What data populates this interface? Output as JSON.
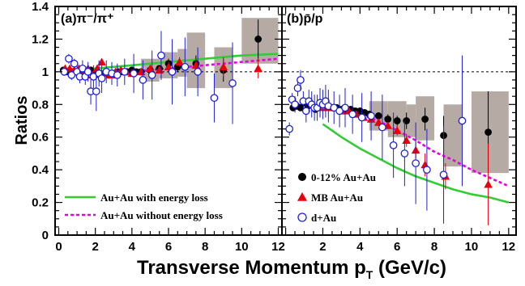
{
  "chart_data": {
    "type": "scatter",
    "ylabel": "Ratios",
    "xlabel_main": "Transverse Momentum p",
    "xlabel_sub": "T",
    "xlabel_unit": " (GeV/c)",
    "ylim": [
      0,
      1.4
    ],
    "y_ticks": [
      "0",
      "0.2",
      "0.4",
      "0.6",
      "0.8",
      "1",
      "1.2",
      "1.4"
    ],
    "x_ticks": [
      "0",
      "2",
      "4",
      "6",
      "8",
      "10",
      "12"
    ],
    "reference_line": 1.0,
    "colors": {
      "auau_central": "#000000",
      "mb_auau": "#e8000b",
      "dau": "#1f1fd6",
      "with_eloss": "#33cc33",
      "without_eloss": "#e600e6",
      "syst_box": "#b5aba4"
    },
    "panels": [
      {
        "id": "pi",
        "label_prefix": "(a)",
        "label_ratio": "π⁻/π⁺",
        "xlim": [
          -0.2,
          12.2
        ],
        "series": [
          {
            "key": "auau_central",
            "marker": "filled-circle",
            "x": [
              0.25,
              0.5,
              0.75,
              1.0,
              1.25,
              1.5,
              1.75,
              2.0,
              2.25,
              2.5,
              2.75,
              3.0,
              3.25,
              3.5,
              3.75,
              4.0,
              4.25,
              4.5,
              5.0,
              5.5,
              6.0,
              6.5,
              7.5,
              9.0,
              10.9
            ],
            "y": [
              1.01,
              1.0,
              1.0,
              1.0,
              0.99,
              1.0,
              1.01,
              0.99,
              0.98,
              0.99,
              0.98,
              0.99,
              1.0,
              1.0,
              1.0,
              1.01,
              1.0,
              1.0,
              1.01,
              1.02,
              1.05,
              1.03,
              1.05,
              1.01,
              1.2
            ],
            "err": [
              0.01,
              0.01,
              0.01,
              0.01,
              0.01,
              0.01,
              0.01,
              0.01,
              0.01,
              0.01,
              0.01,
              0.01,
              0.01,
              0.01,
              0.01,
              0.01,
              0.01,
              0.01,
              0.02,
              0.02,
              0.03,
              0.03,
              0.05,
              0.07,
              0.12
            ]
          },
          {
            "key": "mb_auau",
            "marker": "filled-triangle",
            "x": [
              0.35,
              0.6,
              0.85,
              1.1,
              1.35,
              1.6,
              1.85,
              2.1,
              2.35,
              2.6,
              2.85,
              3.1,
              3.4,
              3.7,
              4.0,
              4.5,
              5.0,
              5.5,
              6.0,
              6.6,
              7.5,
              9.0,
              10.9
            ],
            "y": [
              1.02,
              1.02,
              1.01,
              1.02,
              1.0,
              1.02,
              0.98,
              1.02,
              1.06,
              0.99,
              0.98,
              1.0,
              1.01,
              1.0,
              0.99,
              1.0,
              1.02,
              1.01,
              1.03,
              1.06,
              1.04,
              1.03,
              1.02
            ],
            "err": [
              0.01,
              0.01,
              0.01,
              0.01,
              0.01,
              0.01,
              0.01,
              0.01,
              0.02,
              0.01,
              0.01,
              0.01,
              0.01,
              0.01,
              0.02,
              0.02,
              0.02,
              0.02,
              0.03,
              0.03,
              0.04,
              0.06,
              0.06
            ]
          },
          {
            "key": "dau",
            "marker": "open-circle",
            "x": [
              0.3,
              0.55,
              0.7,
              0.85,
              1.0,
              1.15,
              1.3,
              1.45,
              1.6,
              1.75,
              1.9,
              2.05,
              2.2,
              2.35,
              2.6,
              2.9,
              3.2,
              3.6,
              4.1,
              4.6,
              5.1,
              5.6,
              6.2,
              6.9,
              7.6,
              8.5,
              9.5
            ],
            "y": [
              1.0,
              1.08,
              0.98,
              1.05,
              1.0,
              0.97,
              1.02,
              0.97,
              1.0,
              0.88,
              0.97,
              0.88,
              0.99,
              0.96,
              1.0,
              0.99,
              0.98,
              1.0,
              0.99,
              0.95,
              0.98,
              1.1,
              1.0,
              1.03,
              1.0,
              0.84,
              0.93
            ],
            "err": [
              0.02,
              0.03,
              0.03,
              0.03,
              0.04,
              0.04,
              0.05,
              0.05,
              0.06,
              0.08,
              0.07,
              0.12,
              0.08,
              0.09,
              0.07,
              0.07,
              0.07,
              0.08,
              0.12,
              0.12,
              0.15,
              0.15,
              0.2,
              0.18,
              0.15,
              0.15,
              0.25
            ]
          }
        ],
        "syst_boxes": [
          {
            "x0": 4.5,
            "x1": 5.5,
            "y0": 0.94,
            "y1": 1.08
          },
          {
            "x0": 5.5,
            "x1": 6.5,
            "y0": 0.96,
            "y1": 1.12
          },
          {
            "x0": 6.5,
            "x1": 7.0,
            "y0": 0.97,
            "y1": 1.14
          },
          {
            "x0": 7.0,
            "x1": 8.0,
            "y0": 0.9,
            "y1": 1.24
          },
          {
            "x0": 8.5,
            "x1": 9.5,
            "y0": 0.9,
            "y1": 1.15
          },
          {
            "x0": 10.0,
            "x1": 12.0,
            "y0": 1.05,
            "y1": 1.33
          }
        ],
        "curves": [
          {
            "key": "with_eloss",
            "style": "solid",
            "x": [
              0.3,
              2,
              4,
              6,
              8,
              10,
              12
            ],
            "y": [
              1.01,
              1.02,
              1.04,
              1.06,
              1.08,
              1.1,
              1.11
            ]
          },
          {
            "key": "without_eloss",
            "style": "dotted",
            "x": [
              0.3,
              2,
              4,
              6,
              8,
              10,
              12
            ],
            "y": [
              1.0,
              0.99,
              1.0,
              1.02,
              1.04,
              1.06,
              1.08
            ]
          }
        ],
        "legend": [
          {
            "key": "with_eloss",
            "style": "solid",
            "text": "Au+Au with energy loss"
          },
          {
            "key": "without_eloss",
            "style": "dotted",
            "text": "Au+Au without energy loss"
          }
        ]
      },
      {
        "id": "p",
        "label_prefix": "(b)",
        "label_ratio": "p̄/p",
        "xlim": [
          -0.2,
          12.4
        ],
        "series": [
          {
            "key": "auau_central",
            "marker": "filled-circle",
            "x": [
              0.4,
              0.6,
              0.8,
              1.0,
              1.2,
              1.4,
              1.6,
              1.8,
              2.0,
              2.25,
              2.5,
              2.75,
              3.0,
              3.25,
              3.5,
              3.75,
              4.0,
              4.25,
              4.5,
              5.0,
              5.5,
              6.0,
              6.5,
              7.5,
              8.5,
              10.9
            ],
            "y": [
              0.78,
              0.79,
              0.78,
              0.81,
              0.79,
              0.8,
              0.77,
              0.79,
              0.8,
              0.79,
              0.78,
              0.78,
              0.77,
              0.77,
              0.77,
              0.76,
              0.76,
              0.75,
              0.74,
              0.73,
              0.71,
              0.7,
              0.7,
              0.71,
              0.61,
              0.63
            ],
            "err": [
              0.01,
              0.01,
              0.01,
              0.01,
              0.01,
              0.01,
              0.01,
              0.01,
              0.01,
              0.01,
              0.01,
              0.01,
              0.01,
              0.01,
              0.01,
              0.01,
              0.01,
              0.01,
              0.02,
              0.02,
              0.03,
              0.03,
              0.05,
              0.07,
              0.12,
              0.25
            ]
          },
          {
            "key": "mb_auau",
            "marker": "filled-triangle",
            "x": [
              1.8,
              2.2,
              2.6,
              3.0,
              3.4,
              3.8,
              4.2,
              4.6,
              5.0,
              5.5,
              6.0,
              6.5,
              7.0,
              7.5,
              8.6,
              10.9
            ],
            "y": [
              0.78,
              0.78,
              0.78,
              0.76,
              0.76,
              0.74,
              0.72,
              0.71,
              0.69,
              0.67,
              0.64,
              0.58,
              0.52,
              0.43,
              0.36,
              0.31
            ],
            "err": [
              0.01,
              0.01,
              0.01,
              0.01,
              0.01,
              0.01,
              0.01,
              0.01,
              0.02,
              0.02,
              0.03,
              0.04,
              0.05,
              0.07,
              0.08,
              0.25
            ]
          },
          {
            "key": "dau",
            "marker": "open-circle",
            "x": [
              0.2,
              0.35,
              0.5,
              0.65,
              0.8,
              0.95,
              1.1,
              1.25,
              1.4,
              1.55,
              1.7,
              1.85,
              2.0,
              2.15,
              2.3,
              2.6,
              2.9,
              3.2,
              3.6,
              4.1,
              4.6,
              5.2,
              5.8,
              6.4,
              7.0,
              7.6,
              8.5,
              9.5
            ],
            "y": [
              0.65,
              0.83,
              0.8,
              0.9,
              0.95,
              0.82,
              0.76,
              0.82,
              0.8,
              0.78,
              0.78,
              0.81,
              0.8,
              0.82,
              0.79,
              0.78,
              0.76,
              0.78,
              0.74,
              0.72,
              0.73,
              0.66,
              0.55,
              0.5,
              0.44,
              0.4,
              0.37,
              0.7
            ],
            "err": [
              0.04,
              0.04,
              0.05,
              0.05,
              0.06,
              0.06,
              0.07,
              0.07,
              0.08,
              0.08,
              0.08,
              0.09,
              0.09,
              0.1,
              0.1,
              0.1,
              0.1,
              0.12,
              0.12,
              0.15,
              0.15,
              0.2,
              0.2,
              0.2,
              0.25,
              0.25,
              0.3,
              0.4
            ]
          }
        ],
        "syst_boxes": [
          {
            "x0": 4.5,
            "x1": 5.5,
            "y0": 0.64,
            "y1": 0.82
          },
          {
            "x0": 5.5,
            "x1": 6.5,
            "y0": 0.6,
            "y1": 0.82
          },
          {
            "x0": 6.5,
            "x1": 7.0,
            "y0": 0.6,
            "y1": 0.8
          },
          {
            "x0": 7.0,
            "x1": 8.0,
            "y0": 0.58,
            "y1": 0.85
          },
          {
            "x0": 8.5,
            "x1": 9.5,
            "y0": 0.42,
            "y1": 0.8
          },
          {
            "x0": 10.0,
            "x1": 12.0,
            "y0": 0.38,
            "y1": 0.88
          }
        ],
        "curves": [
          {
            "key": "with_eloss",
            "style": "solid",
            "x": [
              2.0,
              3.0,
              4.0,
              5.0,
              6.0,
              7.0,
              8.0,
              9.0,
              10.0,
              11.0,
              12.0
            ],
            "y": [
              0.68,
              0.6,
              0.53,
              0.47,
              0.41,
              0.36,
              0.32,
              0.28,
              0.25,
              0.23,
              0.2
            ]
          },
          {
            "key": "without_eloss",
            "style": "dotted",
            "x": [
              2.0,
              3.0,
              4.0,
              5.0,
              6.0,
              7.0,
              8.0,
              9.0,
              10.0,
              11.0,
              12.0
            ],
            "y": [
              0.79,
              0.77,
              0.74,
              0.7,
              0.64,
              0.58,
              0.51,
              0.46,
              0.4,
              0.35,
              0.3
            ]
          }
        ],
        "legend": [
          {
            "key": "auau_central",
            "marker": "filled-circle",
            "text": "0-12% Au+Au"
          },
          {
            "key": "mb_auau",
            "marker": "filled-triangle",
            "text": "MB Au+Au"
          },
          {
            "key": "dau",
            "marker": "open-circle",
            "text": "d+Au"
          }
        ]
      }
    ]
  }
}
